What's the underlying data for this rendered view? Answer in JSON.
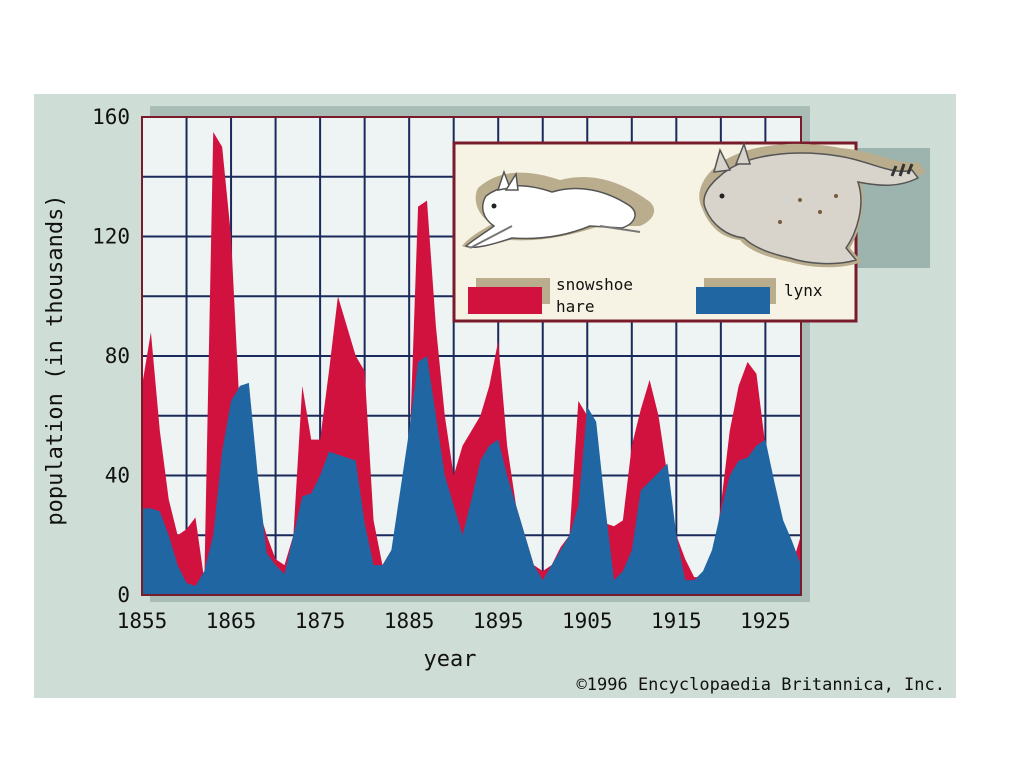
{
  "chart_data": {
    "type": "area",
    "xlabel": "year",
    "ylabel": "population (in thousands)",
    "xlim": [
      1855,
      1929
    ],
    "ylim": [
      0,
      160
    ],
    "grid": true,
    "x_ticks": [
      1855,
      1865,
      1875,
      1885,
      1895,
      1905,
      1915,
      1925
    ],
    "y_ticks": [
      0,
      40,
      80,
      120,
      160
    ],
    "x_tick_labels": [
      "1855",
      "1865",
      "1875",
      "1885",
      "1895",
      "1905",
      "1915",
      "1925"
    ],
    "y_tick_labels": [
      "0",
      "40",
      "80",
      "120",
      "160"
    ],
    "legend_placement": "top-right",
    "series": [
      {
        "name": "snowshoe hare",
        "color": "#d1123f",
        "x": [
          1855,
          1856,
          1857,
          1858,
          1859,
          1860,
          1861,
          1862,
          1863,
          1864,
          1865,
          1866,
          1867,
          1868,
          1869,
          1870,
          1871,
          1872,
          1873,
          1874,
          1875,
          1876,
          1877,
          1878,
          1879,
          1880,
          1881,
          1882,
          1883,
          1884,
          1885,
          1886,
          1887,
          1888,
          1889,
          1890,
          1891,
          1892,
          1893,
          1894,
          1895,
          1896,
          1897,
          1898,
          1899,
          1900,
          1901,
          1902,
          1903,
          1904,
          1905,
          1906,
          1907,
          1908,
          1909,
          1910,
          1911,
          1912,
          1913,
          1914,
          1915,
          1916,
          1917,
          1918,
          1919,
          1920,
          1921,
          1922,
          1923,
          1924,
          1925,
          1926,
          1927,
          1928,
          1929
        ],
        "values": [
          70,
          88,
          55,
          32,
          20,
          22,
          26,
          5,
          155,
          150,
          120,
          60,
          40,
          30,
          20,
          12,
          10,
          20,
          70,
          52,
          52,
          75,
          100,
          90,
          80,
          75,
          25,
          10,
          15,
          20,
          45,
          130,
          132,
          90,
          60,
          40,
          50,
          55,
          60,
          70,
          85,
          50,
          30,
          20,
          10,
          8,
          10,
          16,
          20,
          65,
          60,
          45,
          24,
          23,
          25,
          50,
          62,
          72,
          60,
          40,
          20,
          12,
          6,
          6,
          8,
          30,
          55,
          70,
          78,
          74,
          50,
          30,
          20,
          10,
          20
        ]
      },
      {
        "name": "lynx",
        "color": "#1f66a2",
        "x": [
          1855,
          1856,
          1857,
          1858,
          1859,
          1860,
          1861,
          1862,
          1863,
          1864,
          1865,
          1866,
          1867,
          1868,
          1869,
          1870,
          1871,
          1872,
          1873,
          1874,
          1875,
          1876,
          1877,
          1878,
          1879,
          1880,
          1881,
          1882,
          1883,
          1884,
          1885,
          1886,
          1887,
          1888,
          1889,
          1890,
          1891,
          1892,
          1893,
          1894,
          1895,
          1896,
          1897,
          1898,
          1899,
          1900,
          1901,
          1902,
          1903,
          1904,
          1905,
          1906,
          1907,
          1908,
          1909,
          1910,
          1911,
          1912,
          1913,
          1914,
          1915,
          1916,
          1917,
          1918,
          1919,
          1920,
          1921,
          1922,
          1923,
          1924,
          1925,
          1926,
          1927,
          1928,
          1929
        ],
        "values": [
          29,
          29,
          28,
          20,
          10,
          4,
          3,
          8,
          20,
          48,
          65,
          70,
          71,
          40,
          14,
          10,
          7,
          20,
          33,
          34,
          40,
          48,
          47,
          46,
          45,
          24,
          10,
          10,
          15,
          35,
          55,
          78,
          80,
          60,
          40,
          30,
          20,
          32,
          45,
          50,
          52,
          40,
          30,
          20,
          10,
          5,
          10,
          15,
          20,
          30,
          63,
          58,
          30,
          5,
          8,
          15,
          35,
          38,
          41,
          44,
          20,
          5,
          5,
          8,
          15,
          28,
          40,
          45,
          46,
          50,
          52,
          38,
          25,
          18,
          10
        ]
      }
    ]
  },
  "legend": {
    "hare_label_line1": "snowshoe",
    "hare_label_line2": "hare",
    "lynx_label": "lynx"
  },
  "copyright": "©1996 Encyclopaedia Britannica, Inc.",
  "colors": {
    "background_panel": "#cfddd7",
    "plot_background": "#eef3f4",
    "grid": "#1a2a5a",
    "frame": "#7a1b2b",
    "legend_background": "#f7f3e4",
    "shadow": "#b9ad8d"
  }
}
